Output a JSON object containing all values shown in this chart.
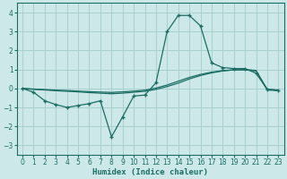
{
  "xlabel": "Humidex (Indice chaleur)",
  "bg_color": "#cce8e8",
  "grid_color": "#a8d0cf",
  "line_color": "#1a6e64",
  "xlim": [
    -0.5,
    23.5
  ],
  "ylim": [
    -3.5,
    4.5
  ],
  "xticks": [
    0,
    1,
    2,
    3,
    4,
    5,
    6,
    7,
    8,
    9,
    10,
    11,
    12,
    13,
    14,
    15,
    16,
    17,
    18,
    19,
    20,
    21,
    22,
    23
  ],
  "yticks": [
    -3,
    -2,
    -1,
    0,
    1,
    2,
    3,
    4
  ],
  "line1_x": [
    0,
    1,
    2,
    3,
    4,
    5,
    6,
    7,
    8,
    9,
    10,
    11,
    12,
    13,
    14,
    15,
    16,
    17,
    18,
    19,
    20,
    21,
    22,
    23
  ],
  "line1_y": [
    0.0,
    -0.2,
    -0.65,
    -0.85,
    -1.0,
    -0.9,
    -0.8,
    -0.65,
    -2.55,
    -1.5,
    -0.4,
    -0.35,
    0.3,
    3.0,
    3.85,
    3.85,
    3.3,
    1.35,
    1.1,
    1.05,
    1.05,
    0.8,
    -0.05,
    -0.1
  ],
  "line2_x": [
    0,
    1,
    2,
    3,
    4,
    5,
    6,
    7,
    8,
    9,
    10,
    11,
    12,
    13,
    14,
    15,
    16,
    17,
    18,
    19,
    20,
    21,
    22,
    23
  ],
  "line2_y": [
    0.0,
    -0.05,
    -0.08,
    -0.12,
    -0.15,
    -0.18,
    -0.22,
    -0.25,
    -0.28,
    -0.25,
    -0.2,
    -0.15,
    -0.05,
    0.1,
    0.28,
    0.5,
    0.68,
    0.82,
    0.92,
    0.98,
    1.0,
    0.95,
    -0.08,
    -0.12
  ],
  "line3_x": [
    0,
    1,
    2,
    3,
    4,
    5,
    6,
    7,
    8,
    9,
    10,
    11,
    12,
    13,
    14,
    15,
    16,
    17,
    18,
    19,
    20,
    21,
    22,
    23
  ],
  "line3_y": [
    0.0,
    -0.03,
    -0.06,
    -0.09,
    -0.11,
    -0.14,
    -0.17,
    -0.19,
    -0.21,
    -0.18,
    -0.14,
    -0.09,
    0.02,
    0.18,
    0.38,
    0.58,
    0.74,
    0.86,
    0.94,
    0.98,
    0.98,
    0.92,
    -0.04,
    -0.08
  ]
}
